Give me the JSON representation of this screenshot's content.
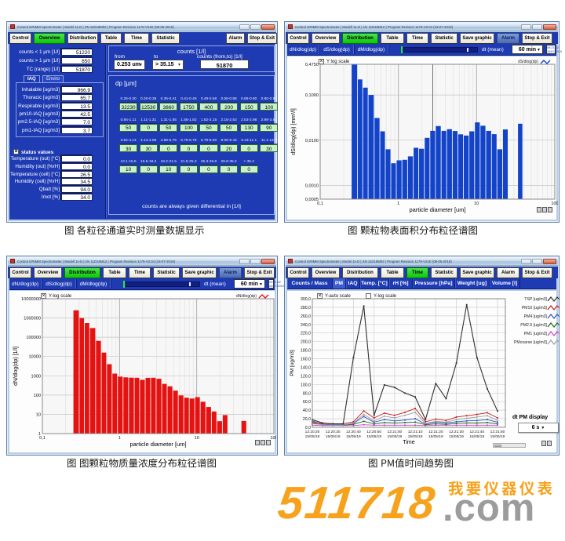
{
  "captions": {
    "tl": "图 各粒径通道实时测量数据显示",
    "tr": "图 颗粒物表面积分布粒径谱图",
    "bl": "图 图颗粒物质量浓度分布粒径谱图",
    "br": "图 PM值时间趋势图"
  },
  "watermark": {
    "digits": "511718",
    "suffix": ".com",
    "slogan": "我要仪器仪表",
    "orange": "#f7a21c",
    "gray": "#9c9c9c"
  },
  "windows": {
    "overview": {
      "title": "Control GRIMM Spectrometer  |  Model 11-D  |  SN 11D18M92  |  Program Revision 1179-V21E (08-05-2019)",
      "tabs": [
        {
          "label": "Control",
          "w": 28
        },
        {
          "label": "Overview",
          "w": 40,
          "state": "active"
        },
        {
          "label": "Distribution",
          "w": 39
        },
        {
          "label": "Table",
          "w": 27
        },
        {
          "label": "Time",
          "w": 32
        },
        {
          "label": "Statistic",
          "w": 36,
          "gapAfter": 56
        },
        {
          "label": "Alarm",
          "w": 24
        },
        {
          "label": "Stop & Exit",
          "w": 38
        }
      ],
      "left": {
        "counts_rows": [
          {
            "label": "counts < 1 µm [1/l]",
            "value": "51220"
          },
          {
            "label": "counts > 1 µm [1/l]",
            "value": "650"
          },
          {
            "label": "TC (range) [1/l]",
            "value": "51870"
          }
        ],
        "iaq_tabs": [
          {
            "label": "IAQ",
            "state": "active"
          },
          {
            "label": "Enviro"
          }
        ],
        "iaq_rows": [
          {
            "label": "Inhalable [ug/m3]",
            "value": "966.9"
          },
          {
            "label": "Thoracic [ug/m3]",
            "value": "65.7"
          },
          {
            "label": "Respirable [ug/m3]",
            "value": "13.5"
          },
          {
            "label": "pm10-IAQ [ug/m3]",
            "value": "42.5"
          },
          {
            "label": "pm2.5-IAQ [ug/m3]",
            "value": "7.0"
          },
          {
            "label": "pm1-IAQ [ug/m3]",
            "value": "3.7"
          }
        ],
        "status_label": "status values",
        "status_rows": [
          {
            "label": "Temperature (out) [°C]",
            "value": "0.0"
          },
          {
            "label": "Humidity (out) [%rH]",
            "value": "0.0"
          },
          {
            "label": "Temperature (cell) [°C]",
            "value": "26.5"
          },
          {
            "label": "Humidity (cell) [%rH]",
            "value": "34.5"
          },
          {
            "label": "Qbatt [%]",
            "value": "94.0"
          },
          {
            "label": "Imot [%]",
            "value": "34.0"
          }
        ]
      },
      "right": {
        "counts_group_title": "counts [1/l]",
        "from_label": "from",
        "from_value": "0.253 um",
        "to_label": "to",
        "to_value": "> 35.15",
        "fromto_label": "counts (from,to) [1/l]",
        "fromto_value": "51870",
        "dp_title": "dp [µm]",
        "dp_rows": [
          {
            "ranges": [
              "0.25-0.30",
              "0.30-0.35",
              "0.35-0.41",
              "0.41-0.49",
              "0.49-0.58",
              "0.58-0.68",
              "0.68-0.80",
              "0.80-0.94"
            ],
            "values": [
              "32230",
              "12530",
              "3860",
              "1750",
              "400",
              "200",
              "150",
              "100"
            ]
          },
          {
            "ranges": [
              "0.94-1.11",
              "1.11-1.31",
              "1.31-1.55",
              "1.55-1.82",
              "1.82-2.15",
              "2.15-2.53",
              "2.53-2.98",
              "2.98-3.52"
            ],
            "values": [
              "50",
              "0",
              "50",
              "100",
              "50",
              "50",
              "130",
              "90"
            ]
          },
          {
            "ranges": [
              "3.52-4.14",
              "4.14-4.89",
              "4.89-5.76",
              "5.76-6.79",
              "6.79-8.00",
              "8.00-9.43",
              "9.43-11.1",
              "11.1-13.1"
            ],
            "values": [
              "30",
              "30",
              "0",
              "0",
              "0",
              "20",
              "0",
              "30"
            ]
          },
          {
            "ranges": [
              "13.1-15.5",
              "15.5-18.2",
              "18.2-21.5",
              "21.5-25.3",
              "25.3-29.8",
              "29.8-35.2",
              "> 35.2"
            ],
            "values": [
              "10",
              "0",
              "10",
              "0",
              "0",
              "0",
              "0"
            ]
          }
        ],
        "footer": "counts are always given differential in [1/l]"
      }
    },
    "surface": {
      "title": "Control GRIMM Spectrometer  |  Modell 11-D  |  s/n 11D18M12  |  Program Revision 1179-V2.04 (18-07-2019)",
      "tabs": [
        {
          "label": "Control",
          "w": 28
        },
        {
          "label": "Overview",
          "w": 36
        },
        {
          "label": "Distribution",
          "w": 46,
          "state": "active"
        },
        {
          "label": "Table",
          "w": 30
        },
        {
          "label": "Time",
          "w": 28
        },
        {
          "label": "Statistic",
          "w": 34
        },
        {
          "label": "Save graphic",
          "w": 44
        },
        {
          "label": "Alarm",
          "w": 29,
          "state": "blue"
        },
        {
          "label": "Stop & Exit",
          "w": 39
        }
      ],
      "toolbar": {
        "buttons": [
          "dN/dlog(dp)",
          "dS/dlog(dp)",
          "dM/dlog(dp)"
        ],
        "dt_label": "dt (mean)",
        "dt_value": "60 min",
        "clock_time": "09:21:32",
        "clock_date": "26/07/2019"
      },
      "checkbox": "Y log scale",
      "legend": "dS/dlog(dp)"
    },
    "number": {
      "title": "Control GRIMM Spectrometer  |  Modell 11-D  |  s/n 11D18M12  |  Program Revision 1179-V2.04 (18-07-2019)",
      "tabs": [
        {
          "label": "Control",
          "w": 28
        },
        {
          "label": "Overview",
          "w": 36
        },
        {
          "label": "Distribution",
          "w": 46,
          "state": "active"
        },
        {
          "label": "Table",
          "w": 30
        },
        {
          "label": "Time",
          "w": 28
        },
        {
          "label": "Statistic",
          "w": 34
        },
        {
          "label": "Save graphic",
          "w": 44
        },
        {
          "label": "Alarm",
          "w": 29,
          "state": "blue"
        },
        {
          "label": "Stop & Exit",
          "w": 39
        }
      ],
      "toolbar": {
        "buttons": [
          "dN/dlog(dp)",
          "dS/dlog(dp)",
          "dM/dlog(dp)"
        ],
        "dt_label": "dt (mean)",
        "dt_value": "60 min",
        "clock_time": "09:21:32",
        "clock_date": "26/07/2019"
      },
      "checkbox": "Y-log scale",
      "legend": "dN/dlog(dp)"
    },
    "pm": {
      "title": "Control GRIMM Spectrometer  |  Model 11-D  |  SN 11D18M92  |  Program Revision 1179-V21E (08-05-2019)",
      "tabs": [
        {
          "label": "Control",
          "w": 28
        },
        {
          "label": "Overview",
          "w": 36
        },
        {
          "label": "Distribution",
          "w": 46
        },
        {
          "label": "Table",
          "w": 30
        },
        {
          "label": "Time",
          "w": 28,
          "state": "active"
        },
        {
          "label": "Statistic",
          "w": 34
        },
        {
          "label": "Save graphic",
          "w": 44
        },
        {
          "label": "Alarm",
          "w": 29
        },
        {
          "label": "Stop & Exit",
          "w": 39
        }
      ],
      "subtabs": [
        {
          "label": "Counts / Mass",
          "w": 58
        },
        {
          "label": "PM",
          "w": 17,
          "state": "active"
        },
        {
          "label": "IAQ",
          "w": 18
        },
        {
          "label": "Temp. [°C]",
          "w": 37
        },
        {
          "label": "rH [%]",
          "w": 30
        },
        {
          "label": "Pressure [hPa]",
          "w": 54
        },
        {
          "label": "Weight [ug]",
          "w": 44
        },
        {
          "label": "Volume [l]",
          "w": 39
        }
      ],
      "checkbox_auto": "Y-auto scale",
      "checkbox_log": "Y-log scale",
      "dt_pm_label": "dt PM display",
      "dt_pm_value": "6 s"
    }
  },
  "chart_data": [
    {
      "id": "surface",
      "type": "bar",
      "xscale": "log",
      "yscale": "log",
      "xlim": [
        0.1,
        100
      ],
      "ylim": [
        0.0005,
        0.475
      ],
      "xlabel": "particle diameter [um]",
      "ylabel": "dS/dlog(dp) [mm²/l]",
      "xticks": [
        {
          "v": 0.1,
          "t": "0,1"
        },
        {
          "v": 1,
          "t": "1"
        },
        {
          "v": 10,
          "t": "10"
        },
        {
          "v": 100,
          "t": "100"
        }
      ],
      "yticks": [
        {
          "v": 0.475,
          "t": "0,4750"
        },
        {
          "v": 0.1,
          "t": "0,1000"
        },
        {
          "v": 0.01,
          "t": "0,0100"
        },
        {
          "v": 0.001,
          "t": "0,0010"
        },
        {
          "v": 0.0005,
          "t": "0,0005"
        }
      ],
      "bar_color": "#1243c8",
      "cursor_x": 2.75,
      "bin_edges": [
        0.25,
        0.3,
        0.35,
        0.41,
        0.49,
        0.58,
        0.68,
        0.8,
        0.94,
        1.11,
        1.31,
        1.55,
        1.82,
        2.15,
        2.53,
        2.98,
        3.52,
        4.14,
        4.89,
        5.76,
        6.79,
        8.0,
        9.43,
        11.1,
        13.1,
        15.5,
        18.2,
        21.5,
        25.3
      ],
      "values": [
        0.475,
        0.22,
        0.145,
        0.1,
        0.031,
        0.0157,
        0.0063,
        0.0031,
        0.0036,
        0.0037,
        0.0044,
        0.0068,
        0.0065,
        0.0113,
        0.0161,
        0.0205,
        0.0161,
        0.0175,
        0.016,
        0.0135,
        0.0127,
        0.0157,
        0.0248,
        0.0209,
        0.0161,
        0.0136,
        0.0063,
        0.0173
      ],
      "isolated_bar": {
        "x0": 33.5,
        "x1": 38.9,
        "v": 0.0231
      }
    },
    {
      "id": "number",
      "type": "bar",
      "xscale": "log",
      "yscale": "log",
      "xlim": [
        0.1,
        100
      ],
      "ylim": [
        1,
        10000000
      ],
      "xlabel": "particle diameter [um]",
      "ylabel": "dN/dlog(dp) [1/l]",
      "xticks": [
        {
          "v": 0.1,
          "t": "0,1"
        },
        {
          "v": 1,
          "t": "1"
        },
        {
          "v": 10,
          "t": "10"
        },
        {
          "v": 100,
          "t": "100"
        }
      ],
      "yticks": [
        {
          "v": 10000000,
          "t": "10000000"
        },
        {
          "v": 1000000,
          "t": "1000000"
        },
        {
          "v": 100000,
          "t": "100000"
        },
        {
          "v": 10000,
          "t": "10000"
        },
        {
          "v": 1000,
          "t": "1000"
        },
        {
          "v": 100,
          "t": "100"
        },
        {
          "v": 10,
          "t": "10"
        },
        {
          "v": 1,
          "t": "1"
        }
      ],
      "bar_color": "#e51212",
      "bin_edges": [
        0.25,
        0.3,
        0.35,
        0.41,
        0.49,
        0.58,
        0.68,
        0.8,
        0.94,
        1.11,
        1.31,
        1.55,
        1.82,
        2.15,
        2.53,
        2.98,
        3.52,
        4.14,
        4.89,
        5.76,
        6.79,
        8.0,
        9.43,
        11.1,
        13.1,
        15.5,
        18.2,
        21.5,
        25.3
      ],
      "values": [
        2500000,
        1000000,
        550000,
        300000,
        65000,
        16000,
        4000,
        1300,
        900,
        830,
        800,
        790,
        620,
        780,
        790,
        700,
        380,
        285,
        170,
        96,
        73,
        66,
        78,
        45,
        24,
        14,
        4.4,
        9.1
      ],
      "isolated_bar": {
        "x0": 37.6,
        "x1": 44.3,
        "v": 4.5
      }
    },
    {
      "id": "pm",
      "type": "line",
      "ylim": [
        0,
        300
      ],
      "ystep": 20,
      "xlabel": "Time",
      "ylabel": "PM [ug/m3]",
      "x_time_labels": [
        "12:20:20",
        "12:20:30",
        "12:20:40",
        "12:20:50",
        "12:21:00",
        "12:21:10",
        "12:21:20",
        "12:21:30",
        "12:21:40",
        "12:21:50"
      ],
      "x_date_label": "15/05/19",
      "points_per_gridline": 2,
      "series": [
        {
          "name": "TSP [ug/m3]",
          "color": "#303030",
          "values": [
            18,
            10,
            8,
            8,
            163,
            283,
            28,
            99,
            93,
            80,
            71,
            18,
            102,
            67,
            150,
            286,
            163,
            90,
            38
          ]
        },
        {
          "name": "PM10 [ug/m3]",
          "color": "#c42020",
          "values": [
            12,
            9,
            8,
            8,
            13,
            38,
            22,
            33,
            28,
            35,
            44,
            13,
            19,
            16,
            24,
            27,
            30,
            34,
            22
          ]
        },
        {
          "name": "PMcoarse [ug/m3]",
          "color": "#a0a0a0",
          "values": [
            8,
            6,
            5,
            5,
            10,
            30,
            15,
            26,
            22,
            28,
            35,
            9,
            14,
            12,
            18,
            21,
            24,
            27,
            16
          ]
        },
        {
          "name": "PM4 [ug/m3]",
          "color": "#2c50c8",
          "values": [
            15,
            7,
            6,
            6,
            9,
            25,
            12,
            18,
            15,
            17,
            20,
            8,
            12,
            10,
            13,
            15,
            16,
            18,
            12
          ]
        },
        {
          "name": "PM2.5 [ug/m3]",
          "color": "#1e641e",
          "values": [
            10,
            6,
            5,
            5,
            7,
            14,
            8,
            11,
            10,
            11,
            12,
            6,
            8,
            7,
            9,
            10,
            10,
            11,
            8
          ]
        },
        {
          "name": "PM1 [ug/m3]",
          "color": "#cc44cc",
          "values": [
            5,
            4,
            4,
            4,
            4,
            6,
            5,
            5,
            5,
            5,
            5,
            4,
            5,
            5,
            5,
            5,
            5,
            5,
            5
          ]
        }
      ],
      "legend_order": [
        "TSP [ug/m3]",
        "PM10 [ug/m3]",
        "PM4 [ug/m3]",
        "PM2.5 [ug/m3]",
        "PM1 [ug/m3]",
        "PMcoarse [ug/m3]"
      ]
    }
  ]
}
